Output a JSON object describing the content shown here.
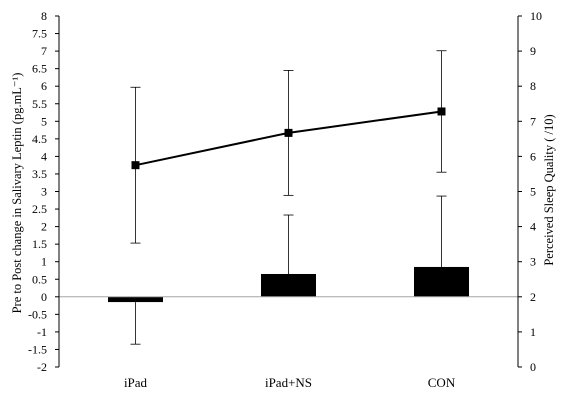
{
  "chart_data": {
    "type": "bar",
    "categories": [
      "iPad",
      "iPad+NS",
      "CON"
    ],
    "title": "",
    "xlabel": "",
    "ylabel": "Pre to Post change in Salivary Leptin (pg.mL⁻¹)",
    "y2label": "Perceived Sleep Quality ( /10)",
    "ylim": [
      -2,
      8
    ],
    "y2lim": [
      0,
      10
    ],
    "yticks": [
      "-2",
      "-1.5",
      "-1",
      "-0.5",
      "0",
      "0.5",
      "1",
      "1.5",
      "2",
      "2.5",
      "3",
      "3.5",
      "4",
      "4.5",
      "5",
      "5.5",
      "6",
      "6.5",
      "7",
      "7.5",
      "8"
    ],
    "y2ticks": [
      "0",
      "1",
      "2",
      "3",
      "4",
      "5",
      "6",
      "7",
      "8",
      "9",
      "10"
    ],
    "grid": false,
    "legend": "none",
    "series": [
      {
        "type": "bar",
        "axis": "left",
        "values": [
          -0.15,
          0.65,
          0.85
        ],
        "error_upper": [
          0,
          1.68,
          2.02
        ],
        "error_lower": [
          1.2,
          0,
          0
        ],
        "color": "#000000"
      },
      {
        "type": "line",
        "axis": "right",
        "values": [
          5.75,
          6.67,
          7.28
        ],
        "error": [
          2.22,
          1.78,
          1.73
        ],
        "color": "#000000",
        "marker": "square"
      }
    ]
  }
}
